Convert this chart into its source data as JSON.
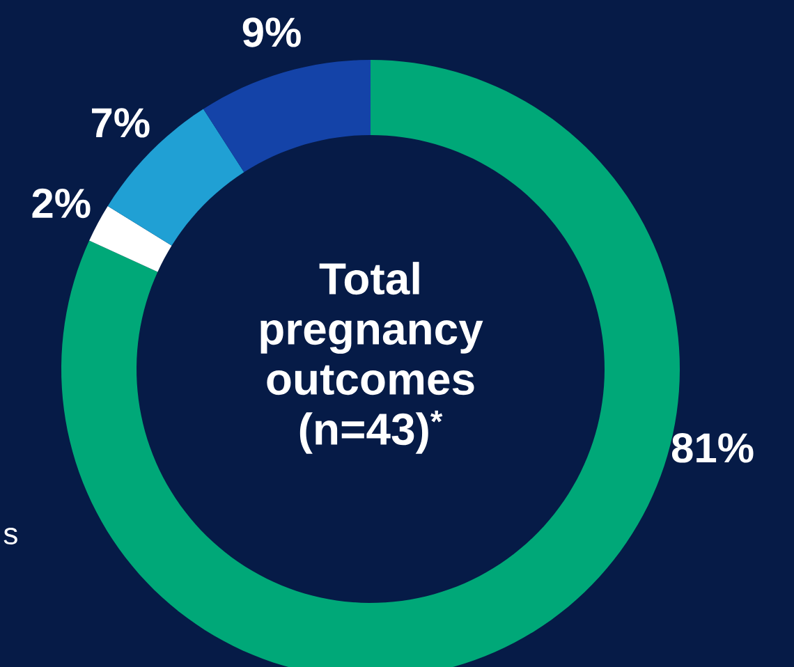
{
  "chart_data": {
    "type": "donut",
    "categories": [
      null,
      null,
      null,
      null
    ],
    "values": [
      81,
      2,
      7,
      9
    ],
    "colors": [
      "#00a878",
      "#ffffff",
      "#20a0d4",
      "#1443a8"
    ],
    "value_labels": [
      "81%",
      "2%",
      "7%",
      "9%"
    ],
    "annotations": [
      "Total pregnancy outcomes (n=43)$^{*}$",
      "s"
    ]
  }
}
